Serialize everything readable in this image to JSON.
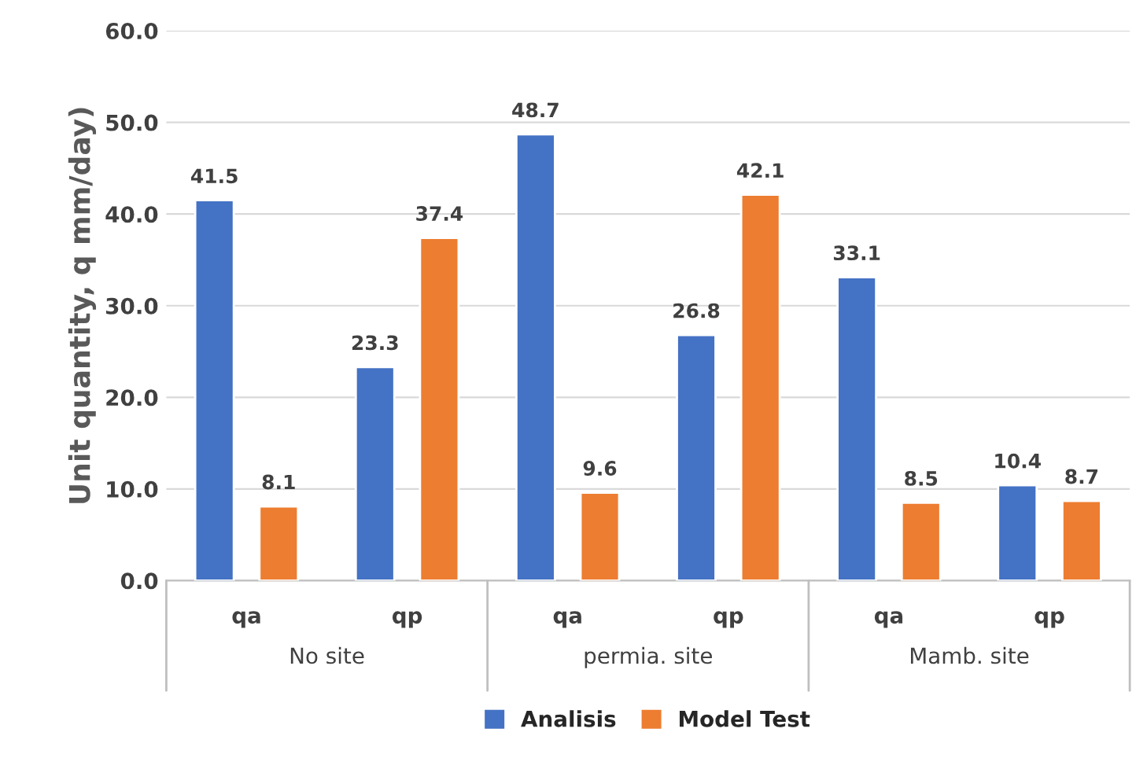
{
  "chart_data": {
    "type": "bar",
    "ylabel": "Unit quantity, q mm/day)",
    "categories": [
      "qa",
      "qp",
      "qa",
      "qp",
      "qa",
      "qp"
    ],
    "series": [
      {
        "name": "Analisis",
        "color": "#4472c4",
        "values": [
          41.5,
          23.3,
          48.7,
          26.8,
          33.1,
          10.4
        ]
      },
      {
        "name": "Model Test",
        "color": "#ed7d31",
        "values": [
          8.1,
          37.4,
          9.6,
          42.1,
          8.5,
          8.7
        ]
      }
    ],
    "annotations": [
      "No site",
      "permia. site",
      "Mamb. site"
    ],
    "ylim": [
      0,
      60
    ],
    "yticks": [
      {
        "value": 0,
        "label": "0.0"
      },
      {
        "value": 10,
        "label": "10.0"
      },
      {
        "value": 20,
        "label": "20.0"
      },
      {
        "value": 30,
        "label": "30.0"
      },
      {
        "value": 40,
        "label": "40.0"
      },
      {
        "value": 50,
        "label": "50.0"
      },
      {
        "value": 60,
        "label": "60.0"
      }
    ],
    "grid": "y",
    "legend": "bottom",
    "data_labels": true
  }
}
